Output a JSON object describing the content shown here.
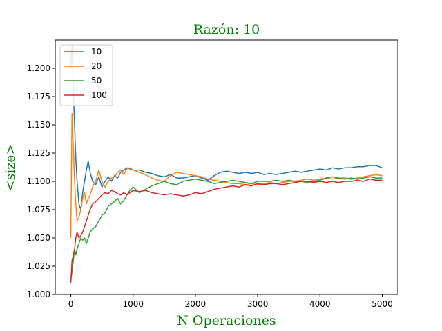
{
  "chart_data": {
    "type": "line",
    "title": "Razón: 10",
    "xlabel": "N Operaciones",
    "ylabel": "<size>",
    "title_color": "#008000",
    "xlim": [
      -250,
      5250
    ],
    "ylim": [
      1.0,
      1.225
    ],
    "xticks": [
      0,
      1000,
      2000,
      3000,
      4000,
      5000
    ],
    "xtick_labels": [
      "0",
      "1000",
      "2000",
      "3000",
      "4000",
      "5000"
    ],
    "yticks": [
      1.0,
      1.025,
      1.05,
      1.075,
      1.1,
      1.125,
      1.15,
      1.175,
      1.2
    ],
    "ytick_labels": [
      "1.000",
      "1.025",
      "1.050",
      "1.075",
      "1.100",
      "1.125",
      "1.150",
      "1.175",
      "1.200"
    ],
    "grid": false,
    "legend_position": "top-left",
    "series": [
      {
        "name": "10",
        "color": "#1f77b4",
        "x": [
          0,
          20,
          40,
          60,
          80,
          100,
          130,
          160,
          190,
          220,
          250,
          280,
          310,
          350,
          400,
          450,
          500,
          550,
          600,
          650,
          700,
          750,
          800,
          850,
          900,
          950,
          1000,
          1100,
          1200,
          1300,
          1400,
          1500,
          1600,
          1700,
          1800,
          1900,
          2000,
          2100,
          2200,
          2300,
          2400,
          2500,
          2600,
          2700,
          2800,
          2900,
          3000,
          3100,
          3200,
          3300,
          3400,
          3500,
          3600,
          3700,
          3800,
          3900,
          4000,
          4100,
          4200,
          4300,
          4400,
          4500,
          4600,
          4700,
          4800,
          4900,
          5000
        ],
        "values": [
          1.2,
          1.22,
          1.18,
          1.15,
          1.12,
          1.1,
          1.08,
          1.075,
          1.09,
          1.1,
          1.11,
          1.118,
          1.108,
          1.1,
          1.097,
          1.104,
          1.095,
          1.1,
          1.104,
          1.1,
          1.105,
          1.103,
          1.108,
          1.11,
          1.112,
          1.111,
          1.11,
          1.11,
          1.108,
          1.107,
          1.105,
          1.104,
          1.106,
          1.103,
          1.103,
          1.104,
          1.105,
          1.103,
          1.101,
          1.105,
          1.108,
          1.109,
          1.108,
          1.107,
          1.108,
          1.107,
          1.108,
          1.106,
          1.107,
          1.106,
          1.107,
          1.108,
          1.109,
          1.108,
          1.109,
          1.11,
          1.111,
          1.11,
          1.112,
          1.111,
          1.112,
          1.112,
          1.113,
          1.113,
          1.114,
          1.114,
          1.112
        ]
      },
      {
        "name": "20",
        "color": "#ff7f0e",
        "x": [
          0,
          20,
          40,
          60,
          80,
          100,
          130,
          160,
          190,
          220,
          250,
          280,
          310,
          350,
          400,
          450,
          500,
          550,
          600,
          650,
          700,
          750,
          800,
          850,
          900,
          950,
          1000,
          1100,
          1200,
          1300,
          1400,
          1500,
          1600,
          1700,
          1800,
          1900,
          2000,
          2100,
          2200,
          2300,
          2400,
          2500,
          2600,
          2700,
          2800,
          2900,
          3000,
          3100,
          3200,
          3300,
          3400,
          3500,
          3600,
          3700,
          3800,
          3900,
          4000,
          4100,
          4200,
          4300,
          4400,
          4500,
          4600,
          4700,
          4800,
          4900,
          5000
        ],
        "values": [
          1.05,
          1.16,
          1.13,
          1.1,
          1.08,
          1.065,
          1.068,
          1.075,
          1.085,
          1.09,
          1.08,
          1.085,
          1.088,
          1.095,
          1.1,
          1.11,
          1.1,
          1.095,
          1.1,
          1.103,
          1.104,
          1.108,
          1.11,
          1.106,
          1.111,
          1.112,
          1.11,
          1.108,
          1.106,
          1.103,
          1.101,
          1.1,
          1.105,
          1.108,
          1.107,
          1.106,
          1.105,
          1.104,
          1.102,
          1.101,
          1.1,
          1.099,
          1.098,
          1.098,
          1.097,
          1.098,
          1.097,
          1.098,
          1.099,
          1.098,
          1.099,
          1.1,
          1.1,
          1.101,
          1.102,
          1.101,
          1.102,
          1.103,
          1.102,
          1.103,
          1.103,
          1.102,
          1.103,
          1.104,
          1.105,
          1.106,
          1.105
        ]
      },
      {
        "name": "50",
        "color": "#2ca02c",
        "x": [
          0,
          20,
          40,
          60,
          80,
          100,
          130,
          160,
          190,
          220,
          250,
          280,
          310,
          350,
          400,
          450,
          500,
          550,
          600,
          650,
          700,
          750,
          800,
          850,
          900,
          950,
          1000,
          1100,
          1200,
          1300,
          1400,
          1500,
          1600,
          1700,
          1800,
          1900,
          2000,
          2100,
          2200,
          2300,
          2400,
          2500,
          2600,
          2700,
          2800,
          2900,
          3000,
          3100,
          3200,
          3300,
          3400,
          3500,
          3600,
          3700,
          3800,
          3900,
          4000,
          4100,
          4200,
          4300,
          4400,
          4500,
          4600,
          4700,
          4800,
          4900,
          5000
        ],
        "values": [
          1.012,
          1.02,
          1.03,
          1.04,
          1.035,
          1.04,
          1.045,
          1.05,
          1.048,
          1.05,
          1.045,
          1.05,
          1.055,
          1.058,
          1.06,
          1.065,
          1.07,
          1.072,
          1.078,
          1.08,
          1.082,
          1.085,
          1.08,
          1.083,
          1.088,
          1.092,
          1.095,
          1.09,
          1.093,
          1.096,
          1.098,
          1.1,
          1.098,
          1.097,
          1.1,
          1.101,
          1.102,
          1.101,
          1.1,
          1.098,
          1.099,
          1.1,
          1.101,
          1.1,
          1.099,
          1.098,
          1.1,
          1.1,
          1.1,
          1.101,
          1.1,
          1.101,
          1.1,
          1.1,
          1.099,
          1.1,
          1.101,
          1.103,
          1.104,
          1.103,
          1.102,
          1.103,
          1.102,
          1.103,
          1.104,
          1.103,
          1.103
        ]
      },
      {
        "name": "100",
        "color": "#d62728",
        "x": [
          0,
          20,
          40,
          60,
          80,
          100,
          130,
          160,
          190,
          220,
          250,
          280,
          310,
          350,
          400,
          450,
          500,
          550,
          600,
          650,
          700,
          750,
          800,
          850,
          900,
          950,
          1000,
          1100,
          1200,
          1300,
          1400,
          1500,
          1600,
          1700,
          1800,
          1900,
          2000,
          2100,
          2200,
          2300,
          2400,
          2500,
          2600,
          2700,
          2800,
          2900,
          3000,
          3100,
          3200,
          3300,
          3400,
          3500,
          3600,
          3700,
          3800,
          3900,
          4000,
          4100,
          4200,
          4300,
          4400,
          4500,
          4600,
          4700,
          4800,
          4900,
          5000
        ],
        "values": [
          1.01,
          1.03,
          1.035,
          1.04,
          1.05,
          1.055,
          1.05,
          1.052,
          1.055,
          1.06,
          1.065,
          1.07,
          1.075,
          1.08,
          1.082,
          1.085,
          1.088,
          1.09,
          1.089,
          1.092,
          1.091,
          1.089,
          1.088,
          1.09,
          1.088,
          1.09,
          1.092,
          1.091,
          1.092,
          1.09,
          1.089,
          1.088,
          1.089,
          1.088,
          1.087,
          1.088,
          1.09,
          1.089,
          1.091,
          1.093,
          1.094,
          1.095,
          1.096,
          1.095,
          1.097,
          1.096,
          1.098,
          1.097,
          1.098,
          1.098,
          1.097,
          1.098,
          1.099,
          1.1,
          1.1,
          1.099,
          1.1,
          1.099,
          1.1,
          1.099,
          1.1,
          1.1,
          1.101,
          1.1,
          1.102,
          1.101,
          1.101
        ]
      }
    ]
  }
}
